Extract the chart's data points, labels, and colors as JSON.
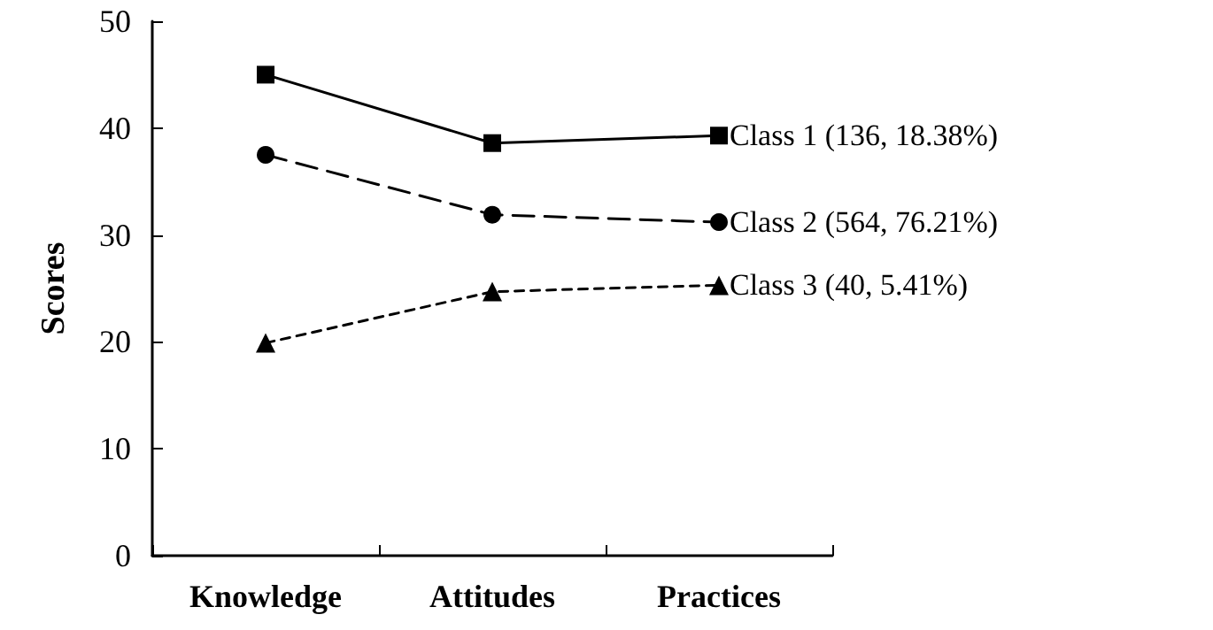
{
  "chart_data": {
    "type": "line",
    "ylabel": "Scores",
    "categories": [
      "Knowledge",
      "Attitudes",
      "Practices"
    ],
    "ylim": [
      0,
      50
    ],
    "yticks": [
      0,
      10,
      20,
      30,
      40,
      50
    ],
    "grid": false,
    "series": [
      {
        "name": "Class 1 (136, 18.38%)",
        "color": "#000000",
        "marker": "square",
        "line_style": "solid",
        "values": [
          45.0,
          38.6,
          39.3
        ]
      },
      {
        "name": "Class 2 (564, 76.21%)",
        "color": "#000000",
        "marker": "circle",
        "line_style": "dashed",
        "values": [
          37.5,
          31.9,
          31.2
        ]
      },
      {
        "name": "Class 3 (40, 5.41%)",
        "color": "#000000",
        "marker": "triangle",
        "line_style": "dotted",
        "values": [
          19.9,
          24.7,
          25.3
        ]
      }
    ]
  }
}
